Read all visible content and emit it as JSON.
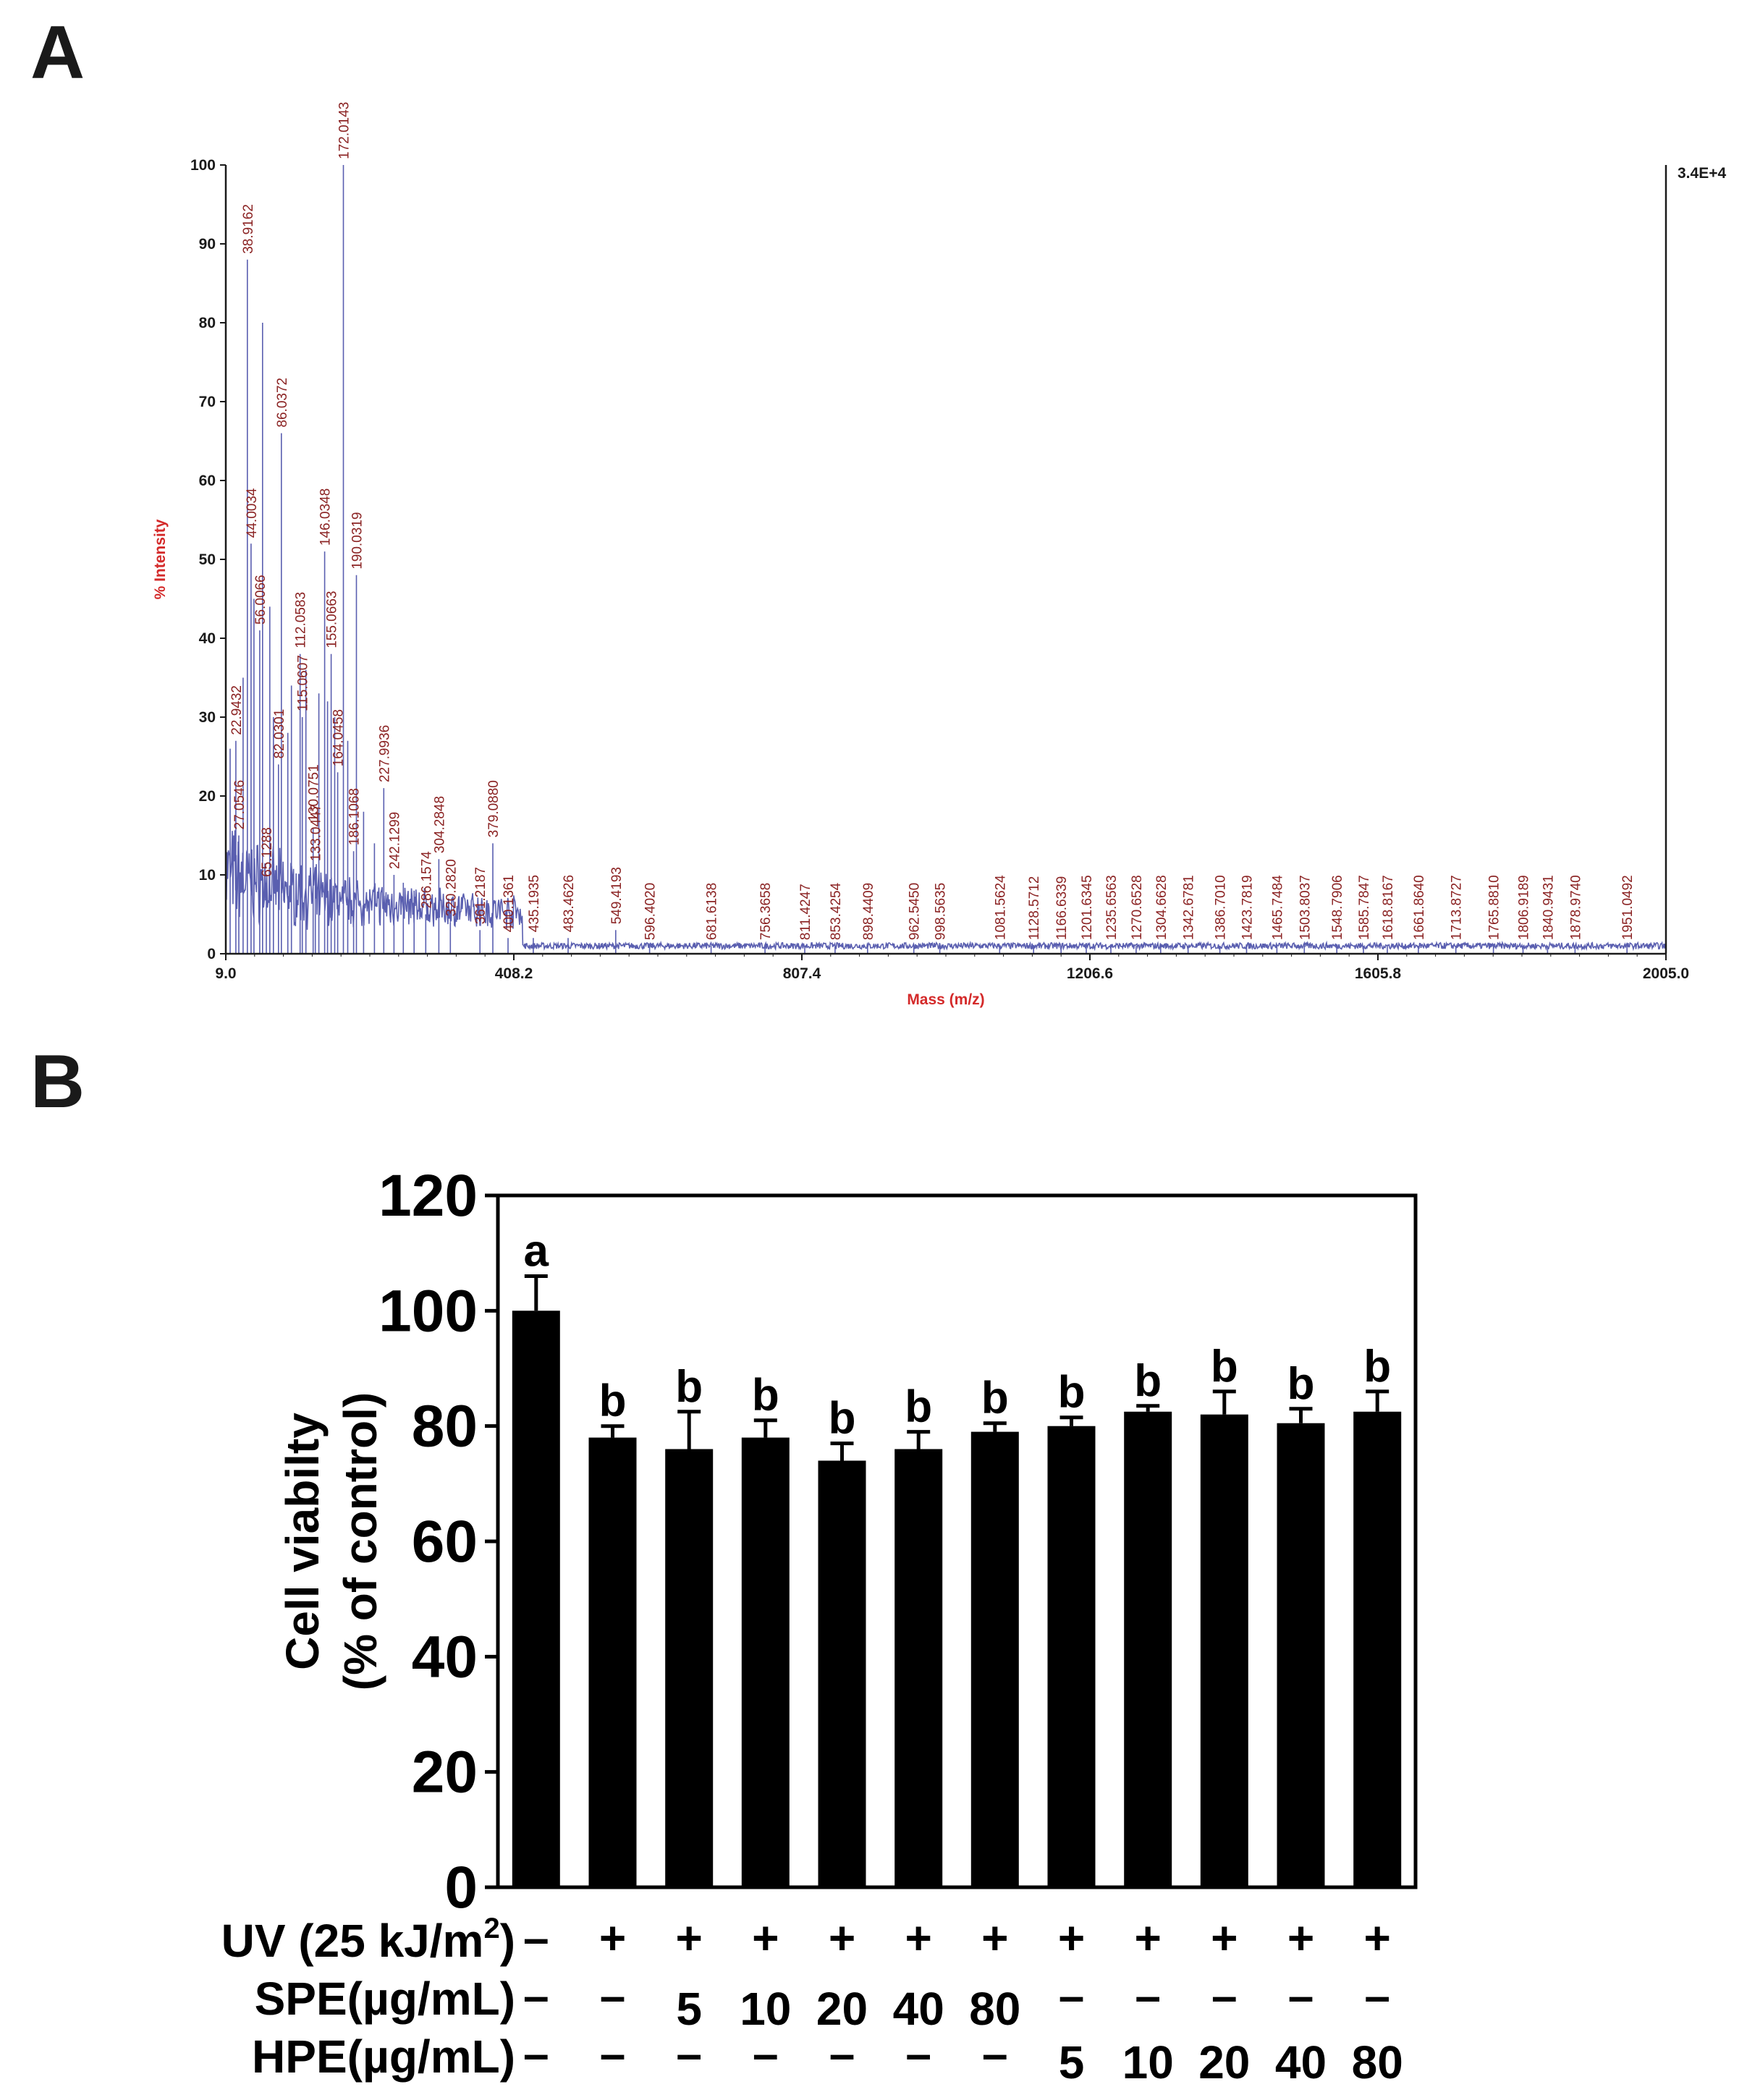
{
  "panel_a_label": "A",
  "panel_b_label": "B",
  "chart_data": [
    {
      "type": "line",
      "panel": "A",
      "title": "",
      "xlabel": "Mass (m/z)",
      "ylabel": "% Intensity",
      "max_intensity": "3.4E+4",
      "xlim": [
        9.0,
        2005.0
      ],
      "ylim": [
        0,
        100
      ],
      "xticks": [
        "9.0",
        "408.2",
        "807.4",
        "1206.6",
        "1605.8",
        "2005.0"
      ],
      "yticks": [
        "0",
        "10",
        "20",
        "30",
        "40",
        "50",
        "60",
        "70",
        "80",
        "90",
        "100"
      ],
      "peaks": [
        {
          "mz": 27.0546,
          "label": "27.0546",
          "intensity": 15
        },
        {
          "mz": 22.9432,
          "label": "22.9432",
          "intensity": 27
        },
        {
          "mz": 38.9162,
          "label": "38.9162",
          "intensity": 88
        },
        {
          "mz": 44.0034,
          "label": "44.0034",
          "intensity": 52
        },
        {
          "mz": 56.0066,
          "label": "56.0066",
          "intensity": 41
        },
        {
          "mz": 65.1288,
          "label": "65.1288",
          "intensity": 9
        },
        {
          "mz": 82.0301,
          "label": "82.0301",
          "intensity": 24
        },
        {
          "mz": 86.0372,
          "label": "86.0372",
          "intensity": 66
        },
        {
          "mz": 112.0583,
          "label": "112.0583",
          "intensity": 38
        },
        {
          "mz": 115.0607,
          "label": "115.0607",
          "intensity": 30
        },
        {
          "mz": 133.0447,
          "label": "133.0447",
          "intensity": 11
        },
        {
          "mz": 130.0751,
          "label": "130.0751",
          "intensity": 16
        },
        {
          "mz": 146.0348,
          "label": "146.0348",
          "intensity": 51
        },
        {
          "mz": 155.0663,
          "label": "155.0663",
          "intensity": 38
        },
        {
          "mz": 164.0458,
          "label": "164.0458",
          "intensity": 23
        },
        {
          "mz": 172.0143,
          "label": "172.0143",
          "intensity": 100
        },
        {
          "mz": 186.1068,
          "label": "186.1068",
          "intensity": 13
        },
        {
          "mz": 190.0319,
          "label": "190.0319",
          "intensity": 48
        },
        {
          "mz": 227.9936,
          "label": "227.9936",
          "intensity": 21
        },
        {
          "mz": 242.1299,
          "label": "242.1299",
          "intensity": 10
        },
        {
          "mz": 286.1574,
          "label": "286.1574",
          "intensity": 5
        },
        {
          "mz": 304.2848,
          "label": "304.2848",
          "intensity": 12
        },
        {
          "mz": 320.282,
          "label": "320.2820",
          "intensity": 4
        },
        {
          "mz": 361.2187,
          "label": "361.2187",
          "intensity": 3
        },
        {
          "mz": 379.088,
          "label": "379.0880",
          "intensity": 14
        },
        {
          "mz": 400.1361,
          "label": "400.1361",
          "intensity": 2
        },
        {
          "mz": 435.1935,
          "label": "435.1935",
          "intensity": 2
        },
        {
          "mz": 483.4626,
          "label": "483.4626",
          "intensity": 2
        },
        {
          "mz": 549.4193,
          "label": "549.4193",
          "intensity": 3
        },
        {
          "mz": 596.402,
          "label": "596.4020",
          "intensity": 1
        },
        {
          "mz": 681.6138,
          "label": "681.6138",
          "intensity": 1
        },
        {
          "mz": 756.3658,
          "label": "756.3658",
          "intensity": 1
        },
        {
          "mz": 811.4247,
          "label": "811.4247",
          "intensity": 1
        },
        {
          "mz": 853.4254,
          "label": "853.4254",
          "intensity": 1
        },
        {
          "mz": 898.4409,
          "label": "898.4409",
          "intensity": 1
        },
        {
          "mz": 962.545,
          "label": "962.5450",
          "intensity": 1
        },
        {
          "mz": 998.5635,
          "label": "998.5635",
          "intensity": 1
        },
        {
          "mz": 1081.5624,
          "label": "1081.5624",
          "intensity": 1
        },
        {
          "mz": 1128.5712,
          "label": "1128.5712",
          "intensity": 1
        },
        {
          "mz": 1166.6339,
          "label": "1166.6339",
          "intensity": 1
        },
        {
          "mz": 1201.6345,
          "label": "1201.6345",
          "intensity": 1
        },
        {
          "mz": 1235.6563,
          "label": "1235.6563",
          "intensity": 1
        },
        {
          "mz": 1270.6528,
          "label": "1270.6528",
          "intensity": 1
        },
        {
          "mz": 1304.6628,
          "label": "1304.6628",
          "intensity": 1
        },
        {
          "mz": 1342.6781,
          "label": "1342.6781",
          "intensity": 1
        },
        {
          "mz": 1386.701,
          "label": "1386.7010",
          "intensity": 1
        },
        {
          "mz": 1423.7819,
          "label": "1423.7819",
          "intensity": 1
        },
        {
          "mz": 1465.7484,
          "label": "1465.7484",
          "intensity": 1
        },
        {
          "mz": 1503.8037,
          "label": "1503.8037",
          "intensity": 1
        },
        {
          "mz": 1548.7906,
          "label": "1548.7906",
          "intensity": 1
        },
        {
          "mz": 1585.7847,
          "label": "1585.7847",
          "intensity": 1
        },
        {
          "mz": 1618.8167,
          "label": "1618.8167",
          "intensity": 1
        },
        {
          "mz": 1661.864,
          "label": "1661.8640",
          "intensity": 1
        },
        {
          "mz": 1713.8727,
          "label": "1713.8727",
          "intensity": 1
        },
        {
          "mz": 1765.881,
          "label": "1765.8810",
          "intensity": 1
        },
        {
          "mz": 1806.9189,
          "label": "1806.9189",
          "intensity": 1
        },
        {
          "mz": 1840.9431,
          "label": "1840.9431",
          "intensity": 1
        },
        {
          "mz": 1878.974,
          "label": "1878.9740",
          "intensity": 1
        },
        {
          "mz": 1951.0492,
          "label": "1951.0492",
          "intensity": 1
        }
      ],
      "line_color": "#5a5fb0",
      "label_color": "#8b2323",
      "axis_title_color": "#d42a2a"
    },
    {
      "type": "bar",
      "panel": "B",
      "title": "",
      "xlabel": "",
      "ylabel_line1": "Cell viabilty",
      "ylabel_line2": "(% of control)",
      "ylim": [
        0,
        120
      ],
      "yticks": [
        "0",
        "20",
        "40",
        "60",
        "80",
        "100",
        "120"
      ],
      "values": [
        100,
        78,
        76,
        78,
        74,
        76,
        79,
        80,
        82.5,
        82,
        80.5,
        82.5
      ],
      "errors": [
        6,
        2,
        6.5,
        3,
        3,
        3,
        1.5,
        1.5,
        1,
        4,
        2.5,
        3.5
      ],
      "significance": [
        "a",
        "b",
        "b",
        "b",
        "b",
        "b",
        "b",
        "b",
        "b",
        "b",
        "b",
        "b"
      ],
      "bar_color": "#000000",
      "conditions": {
        "uv_label": "UV (25 kJ/m",
        "uv_sup": "2",
        "uv_close": ")",
        "spe_label": "SPE(µg/mL)",
        "hpe_label": "HPE(µg/mL)",
        "uv": [
          "–",
          "+",
          "+",
          "+",
          "+",
          "+",
          "+",
          "+",
          "+",
          "+",
          "+",
          "+"
        ],
        "spe": [
          "–",
          "–",
          "5",
          "10",
          "20",
          "40",
          "80",
          "–",
          "–",
          "–",
          "–",
          "–"
        ],
        "hpe": [
          "–",
          "–",
          "–",
          "–",
          "–",
          "–",
          "–",
          "5",
          "10",
          "20",
          "40",
          "80"
        ]
      }
    }
  ]
}
